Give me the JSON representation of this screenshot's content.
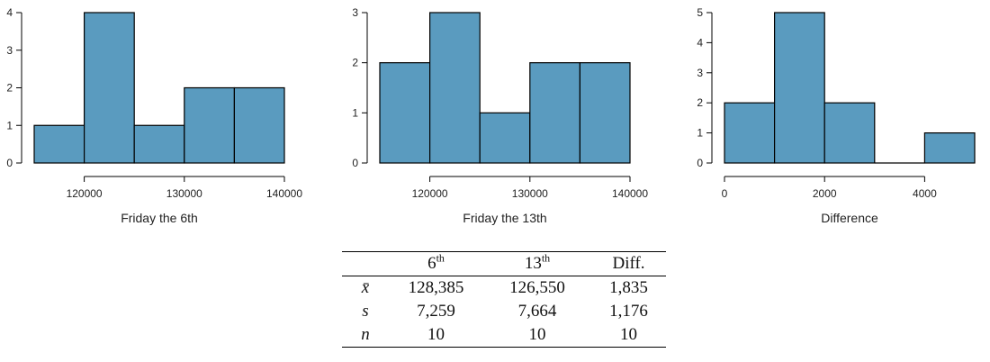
{
  "colors": {
    "bar_fill": "#5a9bbf",
    "bar_stroke": "#000000",
    "axis": "#000000"
  },
  "chart_data": [
    {
      "type": "bar",
      "title": "",
      "xlabel": "Friday the 6th",
      "ylabel": "",
      "bin_edges": [
        115000,
        120000,
        125000,
        130000,
        135000,
        140000
      ],
      "values": [
        1,
        4,
        1,
        2,
        2
      ],
      "xticks": [
        120000,
        130000,
        140000
      ],
      "xtick_labels": [
        "120000",
        "130000",
        "140000"
      ],
      "yticks": [
        0,
        1,
        2,
        3,
        4
      ],
      "ylim": [
        0,
        4
      ]
    },
    {
      "type": "bar",
      "title": "",
      "xlabel": "Friday the 13th",
      "ylabel": "",
      "bin_edges": [
        115000,
        120000,
        125000,
        130000,
        135000,
        140000
      ],
      "values": [
        2,
        3,
        1,
        2,
        2
      ],
      "xticks": [
        120000,
        130000,
        140000
      ],
      "xtick_labels": [
        "120000",
        "130000",
        "140000"
      ],
      "yticks": [
        0,
        1,
        2,
        3
      ],
      "ylim": [
        0,
        3
      ]
    },
    {
      "type": "bar",
      "title": "",
      "xlabel": "Difference",
      "ylabel": "",
      "bin_edges": [
        0,
        1000,
        2000,
        3000,
        4000,
        5000
      ],
      "values": [
        2,
        5,
        2,
        0,
        1
      ],
      "xticks": [
        0,
        2000,
        4000
      ],
      "xtick_labels": [
        "0",
        "2000",
        "4000"
      ],
      "yticks": [
        0,
        1,
        2,
        3,
        4,
        5
      ],
      "ylim": [
        0,
        5
      ]
    }
  ],
  "table": {
    "header": {
      "blank": "",
      "col1": "6",
      "col1_sup": "th",
      "col2": "13",
      "col2_sup": "th",
      "col3": "Diff."
    },
    "rows": [
      {
        "label": "x̄",
        "v1": "128,385",
        "v2": "126,550",
        "v3": "1,835"
      },
      {
        "label": "s",
        "v1": "7,259",
        "v2": "7,664",
        "v3": "1,176"
      },
      {
        "label": "n",
        "v1": "10",
        "v2": "10",
        "v3": "10"
      }
    ]
  }
}
